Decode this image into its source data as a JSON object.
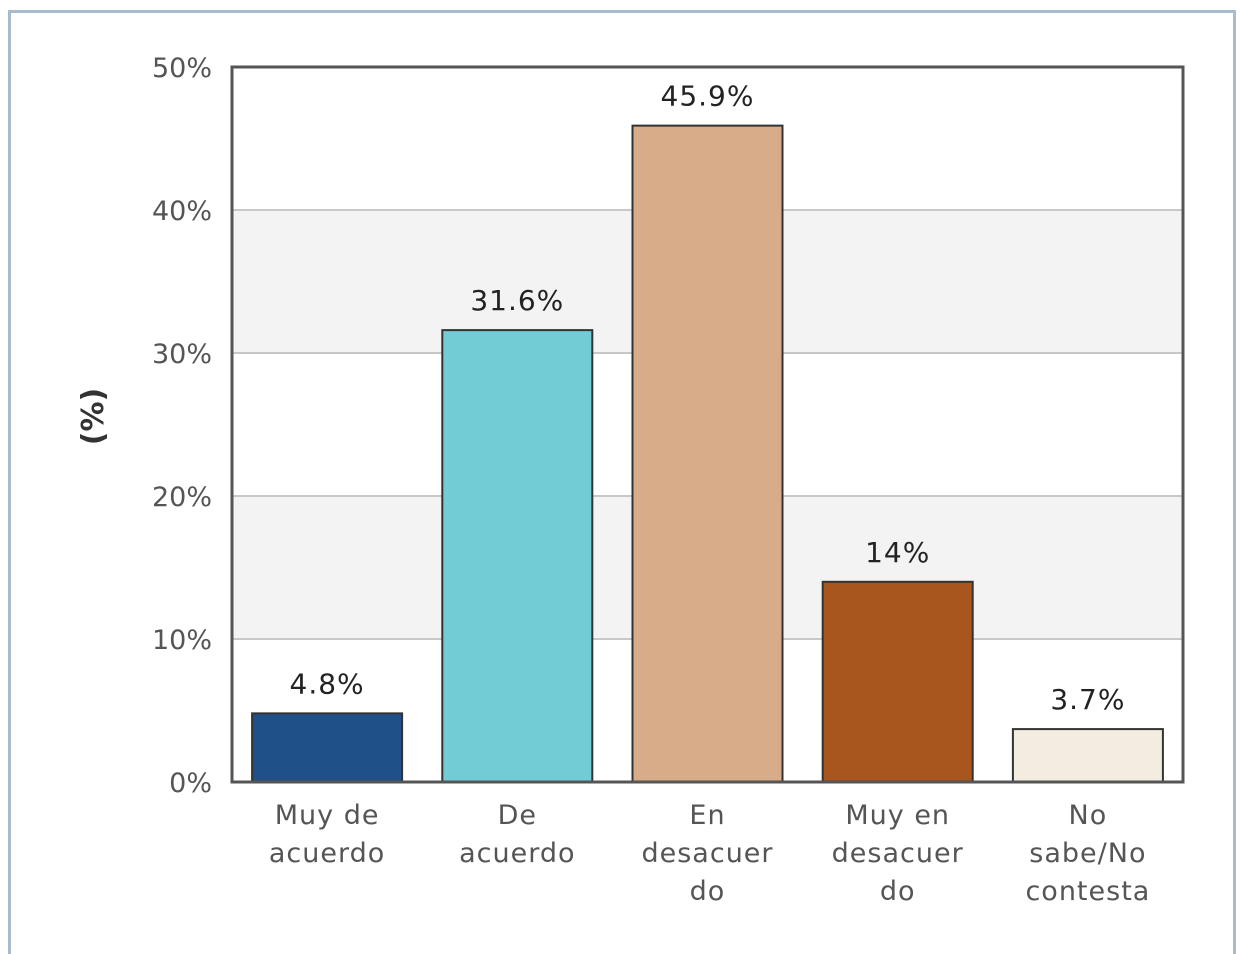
{
  "chart_data": {
    "type": "bar",
    "title": "",
    "xlabel": "",
    "ylabel": "(%)",
    "ylim": [
      0,
      50
    ],
    "yticks": [
      0,
      10,
      20,
      30,
      40,
      50
    ],
    "ytick_labels": [
      "0%",
      "10%",
      "20%",
      "30%",
      "40%",
      "50%"
    ],
    "grid": true,
    "legend": "none",
    "categories": [
      [
        "Muy de",
        "acuerdo"
      ],
      [
        "De",
        "acuerdo"
      ],
      [
        "En",
        "desacuer",
        "do"
      ],
      [
        "Muy en",
        "desacuer",
        "do"
      ],
      [
        "No",
        "sabe/No",
        "contesta"
      ]
    ],
    "values": [
      4.8,
      31.6,
      45.9,
      14,
      3.7
    ],
    "value_labels": [
      "4.8%",
      "31.6%",
      "45.9%",
      "14%",
      "3.7%"
    ],
    "colors": [
      "#1f5088",
      "#72ccd6",
      "#d8ac88",
      "#a8551e",
      "#f3ece0"
    ]
  }
}
